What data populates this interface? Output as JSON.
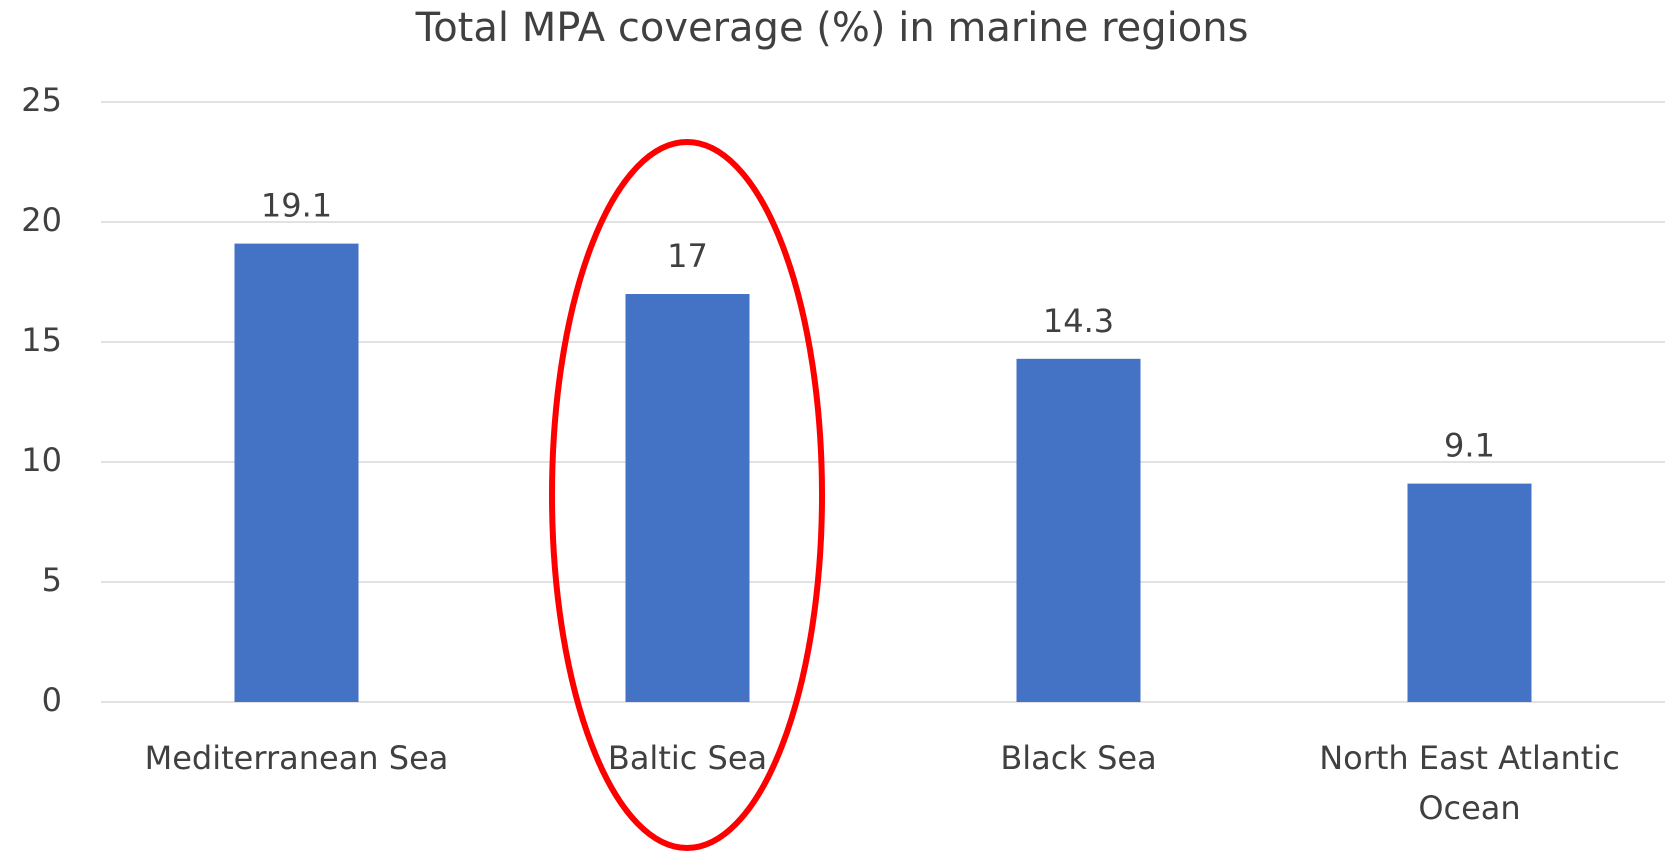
{
  "chart_data": {
    "type": "bar",
    "title": "Total MPA coverage (%) in marine regions",
    "categories": [
      "Mediterranean Sea",
      "Baltic Sea",
      "Black Sea",
      "North East Atlantic Ocean"
    ],
    "values": [
      19.1,
      17,
      14.3,
      9.1
    ],
    "color": "#4472c4",
    "ylim": [
      0,
      25
    ],
    "yticks": [
      0,
      5,
      10,
      15,
      20,
      25
    ],
    "grid": true
  }
}
